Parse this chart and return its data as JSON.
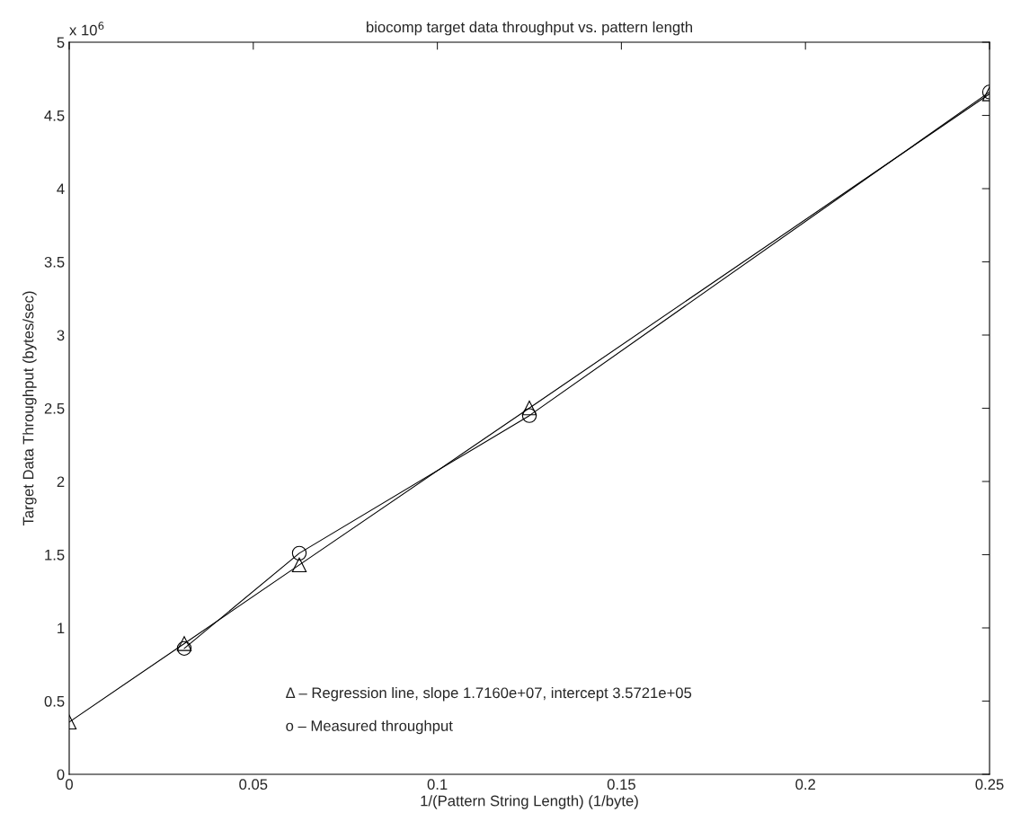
{
  "chart_data": {
    "type": "line",
    "title": "biocomp target data throughput vs. pattern length",
    "xlabel": "1/(Pattern String Length) (1/byte)",
    "ylabel": "Target Data Throughput (bytes/sec)",
    "series": [
      {
        "x": [
          0,
          0.03125,
          0.0625,
          0.125,
          0.25
        ],
        "values": [
          0.357,
          0.893,
          1.43,
          2.502,
          4.647
        ],
        "color": "#000000",
        "marker": "triangle"
      },
      {
        "x": [
          0.03125,
          0.0625,
          0.125,
          0.25
        ],
        "values": [
          0.86,
          1.51,
          2.45,
          4.66
        ],
        "color": "#000000",
        "marker": "circle"
      }
    ],
    "annotations": [
      "x 10$^{6}$",
      "Δ – Regression line, slope 1.7160e+07, intercept 3.5721e+05",
      "o – Measured throughput"
    ],
    "xlim": [
      0,
      0.25
    ],
    "xticks": [
      0,
      0.05,
      0.1,
      0.15,
      0.2,
      0.25
    ],
    "ylim": [
      0,
      5
    ],
    "yticks": [
      0,
      0.5,
      1,
      1.5,
      2,
      2.5,
      3,
      3.5,
      4,
      4.5,
      5
    ],
    "grid": false,
    "line_style": "solid"
  }
}
